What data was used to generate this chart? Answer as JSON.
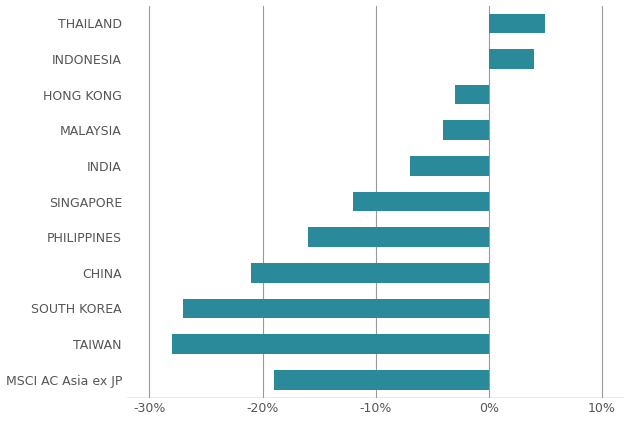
{
  "categories": [
    "MSCI AC Asia ex JP",
    "TAIWAN",
    "SOUTH KOREA",
    "CHINA",
    "PHILIPPINES",
    "SINGAPORE",
    "INDIA",
    "MALAYSIA",
    "HONG KONG",
    "INDONESIA",
    "THAILAND"
  ],
  "values": [
    -19,
    -28,
    -27,
    -21,
    -16,
    -12,
    -7,
    -4,
    -3,
    4,
    5
  ],
  "bar_color": "#2a8a9a",
  "xlim": [
    -32,
    12
  ],
  "xticks": [
    -30,
    -20,
    -10,
    0,
    10
  ],
  "xticklabels": [
    "-30%",
    "-20%",
    "-10%",
    "0%",
    "10%"
  ],
  "background_color": "#ffffff",
  "label_color": "#555555",
  "grid_color": "#999999",
  "bar_height": 0.55,
  "label_fontsize": 9.0,
  "tick_fontsize": 9.0,
  "figsize": [
    6.3,
    4.21
  ],
  "dpi": 100
}
